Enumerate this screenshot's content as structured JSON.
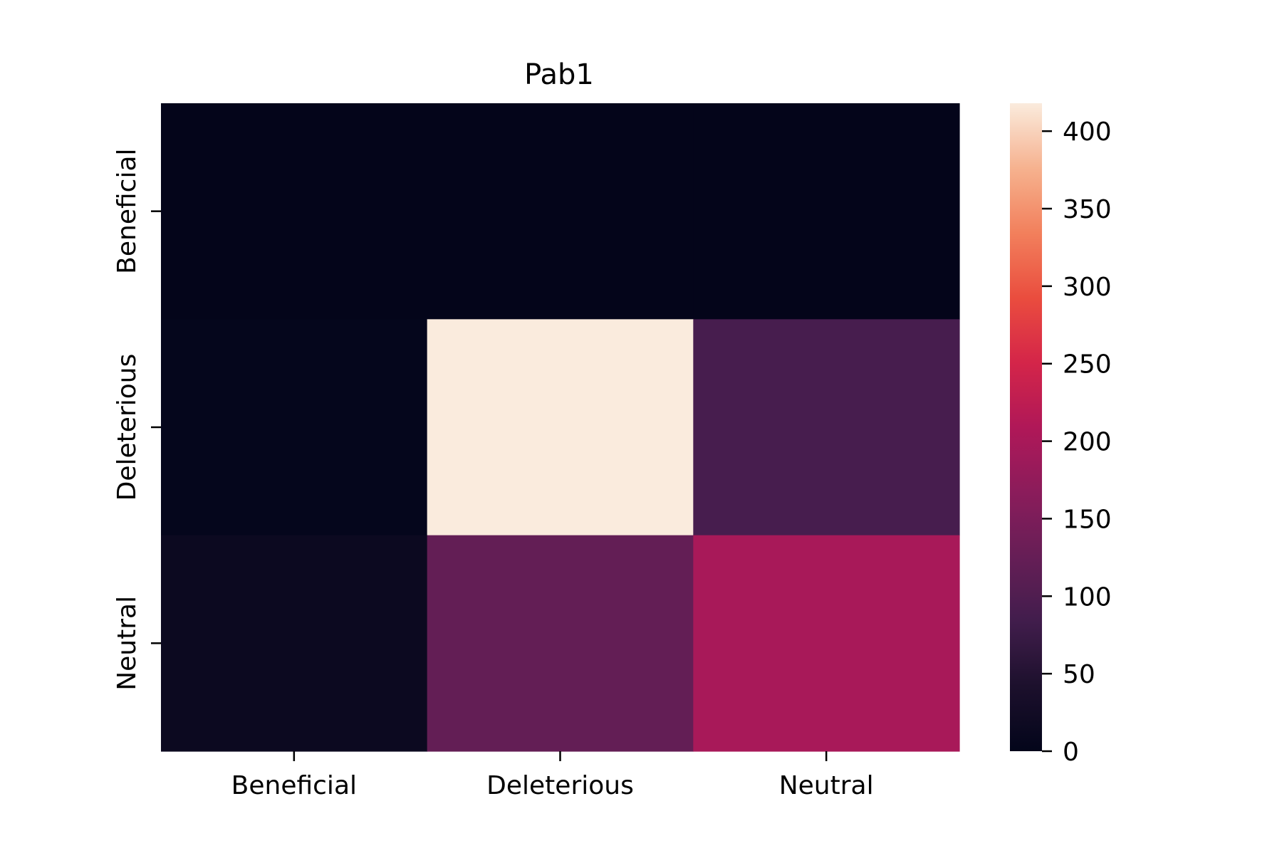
{
  "chart_data": {
    "type": "heatmap",
    "title": "Pab1",
    "xlabel": "",
    "ylabel": "",
    "x_categories": [
      "Beneficial",
      "Deleterious",
      "Neutral"
    ],
    "y_categories": [
      "Beneficial",
      "Deleterious",
      "Neutral"
    ],
    "values": [
      [
        1,
        1,
        1
      ],
      [
        4,
        418,
        90
      ],
      [
        15,
        122,
        200
      ]
    ],
    "colorbar": {
      "min": 0,
      "max": 418,
      "ticks": [
        "0",
        "50",
        "100",
        "150",
        "200",
        "250",
        "300",
        "350",
        "400"
      ],
      "colormap": "rocket"
    },
    "legend": "colorbar-right",
    "grid": false
  }
}
